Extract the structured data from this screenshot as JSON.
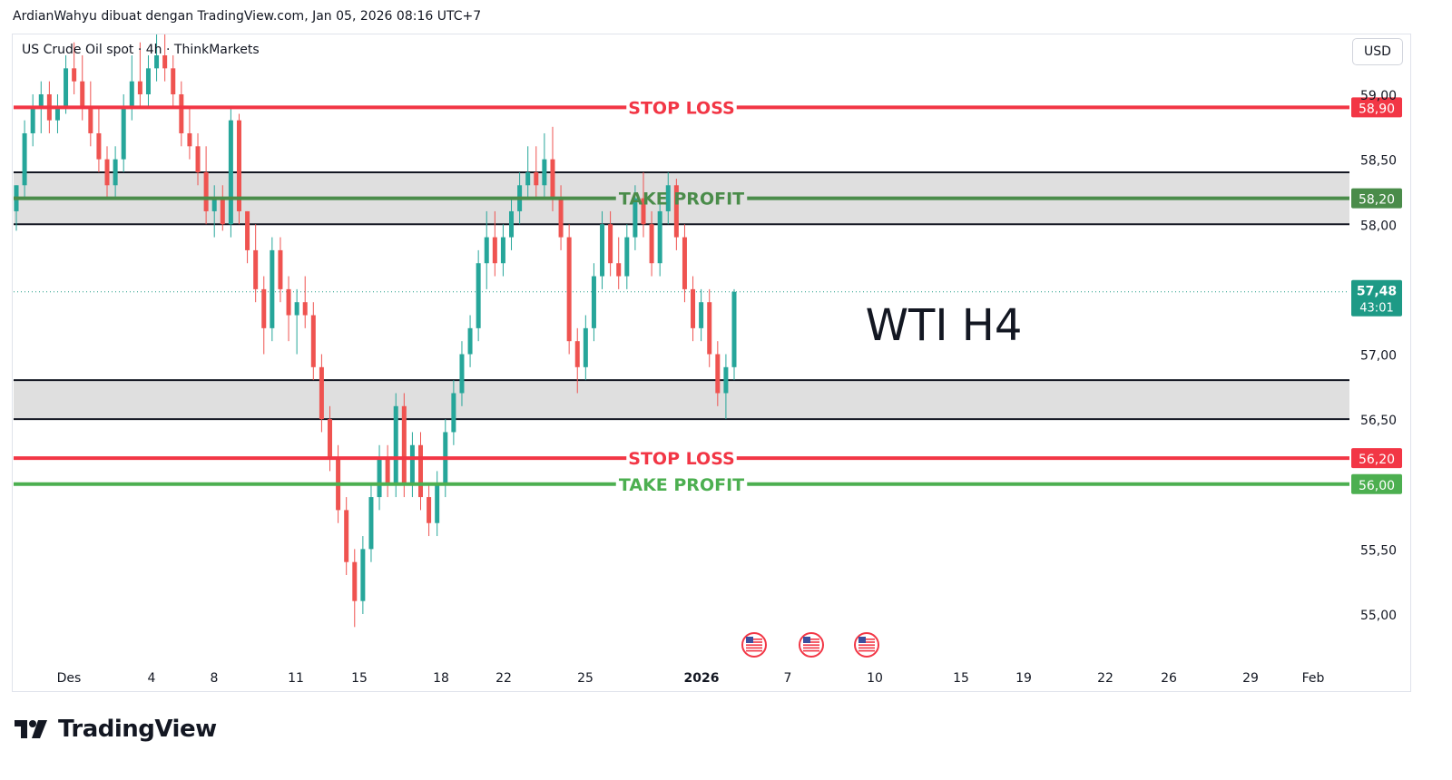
{
  "caption": "ArdianWahyu dibuat dengan TradingView.com, Jan 05, 2026 08:16 UTC+7",
  "symbol_title": "US Crude Oil spot · 4h · ThinkMarkets",
  "currency": "USD",
  "logo_text": "TradingView",
  "annotation": "WTI H4",
  "colors": {
    "up": "#26a69a",
    "down": "#ef5350",
    "stop_loss": "#f23645",
    "take_profit_upper": "#4a8c4a",
    "take_profit_lower": "#4caf50",
    "zone_fill": "#d1d1d1",
    "current_price": "#1e9a86"
  },
  "chart_data": {
    "type": "candlestick",
    "y_axis": {
      "ticks": [
        "59,00",
        "58,50",
        "58,00",
        "57,00",
        "56,50",
        "55,50",
        "55,00"
      ],
      "tick_values": [
        59.0,
        58.5,
        58.0,
        57.0,
        56.5,
        55.5,
        55.0
      ],
      "range": [
        54.75,
        59.2
      ]
    },
    "x_axis": {
      "labels": [
        "Des",
        "4",
        "8",
        "11",
        "15",
        "18",
        "22",
        "25",
        "2026",
        "7",
        "10",
        "15",
        "19",
        "22",
        "26",
        "29",
        "Feb"
      ]
    },
    "levels": [
      {
        "name": "stop-loss-upper",
        "label": "STOP LOSS",
        "price": 58.9,
        "price_label": "58,90",
        "kind": "stop_loss"
      },
      {
        "name": "take-profit-upper",
        "label": "TAKE PROFIT",
        "price": 58.2,
        "price_label": "58,20",
        "kind": "take_profit_upper"
      },
      {
        "name": "stop-loss-lower",
        "label": "STOP LOSS",
        "price": 56.2,
        "price_label": "56,20",
        "kind": "stop_loss"
      },
      {
        "name": "take-profit-lower",
        "label": "TAKE PROFIT",
        "price": 56.0,
        "price_label": "56,00",
        "kind": "take_profit_lower"
      }
    ],
    "zones": [
      {
        "name": "resistance-zone",
        "top": 58.4,
        "bottom": 58.0
      },
      {
        "name": "support-zone",
        "top": 56.8,
        "bottom": 56.5
      }
    ],
    "current_price": {
      "value": 57.48,
      "label": "57,48",
      "countdown": "43:01"
    },
    "candles": [
      [
        58.1,
        58.3,
        57.95,
        58.3
      ],
      [
        58.3,
        58.8,
        58.2,
        58.7
      ],
      [
        58.7,
        59.0,
        58.6,
        58.9
      ],
      [
        58.9,
        59.1,
        58.7,
        59.0
      ],
      [
        59.0,
        59.1,
        58.7,
        58.8
      ],
      [
        58.8,
        59.0,
        58.7,
        58.9
      ],
      [
        58.9,
        59.3,
        58.85,
        59.2
      ],
      [
        59.2,
        59.4,
        59.0,
        59.1
      ],
      [
        59.1,
        59.3,
        58.8,
        58.9
      ],
      [
        58.9,
        59.1,
        58.6,
        58.7
      ],
      [
        58.7,
        58.9,
        58.4,
        58.5
      ],
      [
        58.5,
        58.6,
        58.2,
        58.3
      ],
      [
        58.3,
        58.6,
        58.2,
        58.5
      ],
      [
        58.5,
        59.0,
        58.4,
        58.9
      ],
      [
        58.9,
        59.3,
        58.8,
        59.1
      ],
      [
        59.1,
        59.4,
        58.9,
        59.0
      ],
      [
        59.0,
        59.3,
        58.9,
        59.2
      ],
      [
        59.2,
        59.5,
        59.1,
        59.3
      ],
      [
        59.3,
        59.5,
        59.1,
        59.2
      ],
      [
        59.2,
        59.3,
        58.9,
        59.0
      ],
      [
        59.0,
        59.1,
        58.6,
        58.7
      ],
      [
        58.7,
        58.9,
        58.5,
        58.6
      ],
      [
        58.6,
        58.7,
        58.3,
        58.4
      ],
      [
        58.4,
        58.6,
        58.0,
        58.1
      ],
      [
        58.1,
        58.3,
        57.9,
        58.2
      ],
      [
        58.2,
        58.3,
        57.95,
        58.0
      ],
      [
        58.0,
        58.9,
        57.9,
        58.8
      ],
      [
        58.8,
        58.85,
        58.0,
        58.1
      ],
      [
        58.1,
        58.1,
        57.7,
        57.8
      ],
      [
        57.8,
        58.0,
        57.4,
        57.5
      ],
      [
        57.5,
        57.6,
        57.0,
        57.2
      ],
      [
        57.2,
        57.9,
        57.1,
        57.8
      ],
      [
        57.8,
        57.9,
        57.4,
        57.5
      ],
      [
        57.5,
        57.6,
        57.1,
        57.3
      ],
      [
        57.3,
        57.5,
        57.0,
        57.4
      ],
      [
        57.4,
        57.6,
        57.2,
        57.3
      ],
      [
        57.3,
        57.4,
        56.8,
        56.9
      ],
      [
        56.9,
        57.0,
        56.4,
        56.5
      ],
      [
        56.5,
        56.6,
        56.1,
        56.2
      ],
      [
        56.2,
        56.3,
        55.7,
        55.8
      ],
      [
        55.8,
        55.9,
        55.3,
        55.4
      ],
      [
        55.4,
        55.5,
        54.9,
        55.1
      ],
      [
        55.1,
        55.6,
        55.0,
        55.5
      ],
      [
        55.5,
        56.0,
        55.4,
        55.9
      ],
      [
        55.9,
        56.3,
        55.8,
        56.2
      ],
      [
        56.2,
        56.3,
        55.9,
        56.0
      ],
      [
        56.0,
        56.7,
        55.9,
        56.6
      ],
      [
        56.6,
        56.7,
        55.9,
        56.0
      ],
      [
        56.0,
        56.4,
        55.9,
        56.3
      ],
      [
        56.3,
        56.4,
        55.8,
        55.9
      ],
      [
        55.9,
        56.0,
        55.6,
        55.7
      ],
      [
        55.7,
        56.1,
        55.6,
        56.0
      ],
      [
        56.0,
        56.5,
        55.9,
        56.4
      ],
      [
        56.4,
        56.8,
        56.3,
        56.7
      ],
      [
        56.7,
        57.1,
        56.6,
        57.0
      ],
      [
        57.0,
        57.3,
        56.9,
        57.2
      ],
      [
        57.2,
        57.8,
        57.1,
        57.7
      ],
      [
        57.7,
        58.1,
        57.5,
        57.9
      ],
      [
        57.9,
        58.1,
        57.6,
        57.7
      ],
      [
        57.7,
        58.0,
        57.6,
        57.9
      ],
      [
        57.9,
        58.2,
        57.8,
        58.1
      ],
      [
        58.1,
        58.4,
        58.0,
        58.3
      ],
      [
        58.3,
        58.6,
        58.2,
        58.4
      ],
      [
        58.4,
        58.6,
        58.2,
        58.3
      ],
      [
        58.3,
        58.7,
        58.2,
        58.5
      ],
      [
        58.5,
        58.75,
        58.1,
        58.2
      ],
      [
        58.2,
        58.3,
        57.8,
        57.9
      ],
      [
        57.9,
        58.0,
        57.0,
        57.1
      ],
      [
        57.1,
        57.2,
        56.7,
        56.9
      ],
      [
        56.9,
        57.3,
        56.8,
        57.2
      ],
      [
        57.2,
        57.7,
        57.1,
        57.6
      ],
      [
        57.6,
        58.1,
        57.5,
        58.0
      ],
      [
        58.0,
        58.1,
        57.6,
        57.7
      ],
      [
        57.7,
        57.9,
        57.5,
        57.6
      ],
      [
        57.6,
        58.0,
        57.5,
        57.9
      ],
      [
        57.9,
        58.3,
        57.8,
        58.2
      ],
      [
        58.2,
        58.4,
        57.9,
        58.0
      ],
      [
        58.0,
        58.1,
        57.6,
        57.7
      ],
      [
        57.7,
        58.2,
        57.6,
        58.1
      ],
      [
        58.1,
        58.4,
        58.0,
        58.3
      ],
      [
        58.3,
        58.35,
        57.8,
        57.9
      ],
      [
        57.9,
        58.0,
        57.4,
        57.5
      ],
      [
        57.5,
        57.6,
        57.1,
        57.2
      ],
      [
        57.2,
        57.5,
        57.1,
        57.4
      ],
      [
        57.4,
        57.5,
        56.9,
        57.0
      ],
      [
        57.0,
        57.1,
        56.6,
        56.7
      ],
      [
        56.7,
        57.0,
        56.5,
        56.9
      ],
      [
        56.9,
        57.5,
        56.8,
        57.48
      ]
    ]
  }
}
